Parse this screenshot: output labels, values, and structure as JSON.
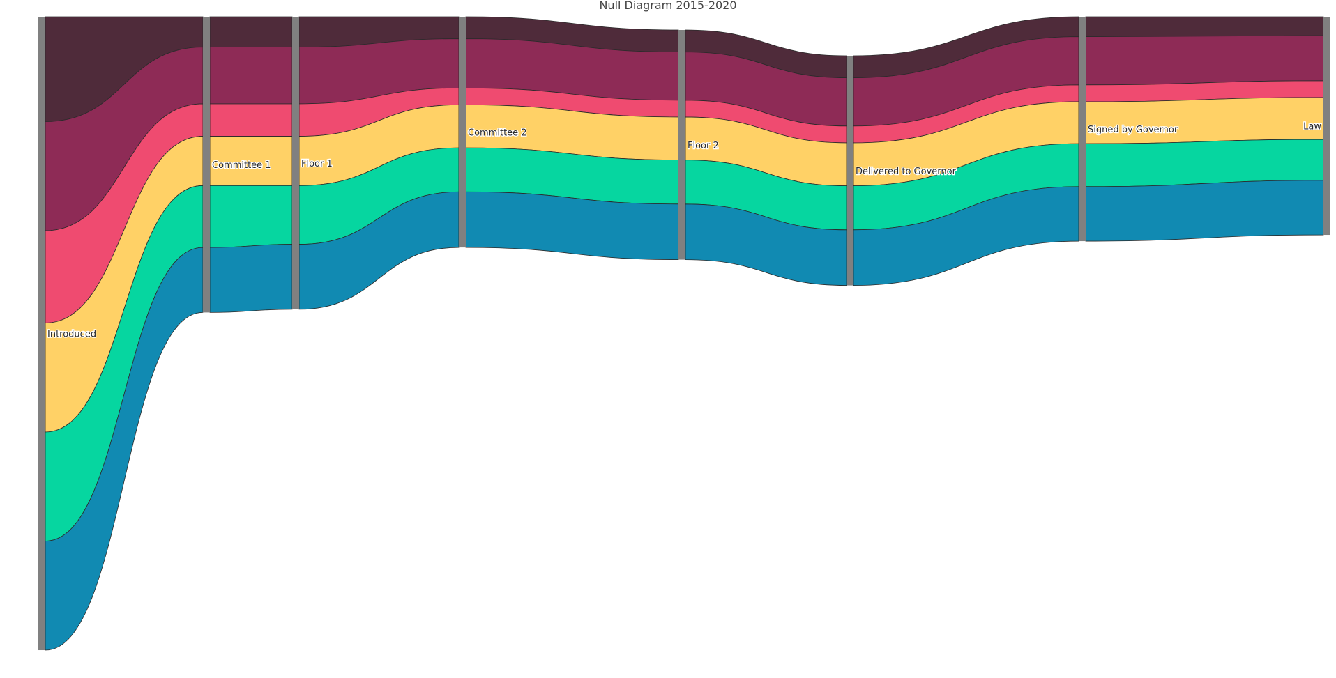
{
  "title": "Null Diagram 2015-2020",
  "colors": {
    "node": "#808080",
    "band_stroke": "#2b2b2b",
    "text": "#2a2a2a",
    "series": [
      "#4f2b3a",
      "#8e2b56",
      "#ef4b70",
      "#ffd166",
      "#06d6a0",
      "#118ab2"
    ]
  },
  "stages": [
    {
      "label": "Introduced",
      "values": [
        10,
        10.4,
        8.8,
        10.4,
        10.4,
        10.4
      ]
    },
    {
      "label": "Committee 1",
      "values": [
        2.9,
        5.4,
        3.1,
        4.7,
        5.9,
        6.2
      ]
    },
    {
      "label": "Floor 1",
      "values": [
        2.9,
        5.4,
        3.1,
        4.7,
        5.6,
        6.2
      ]
    },
    {
      "label": "Committee 2",
      "values": [
        2.1,
        4.7,
        1.6,
        4.1,
        4.2,
        5.3
      ]
    },
    {
      "label": "Floor 2",
      "values": [
        2.1,
        4.6,
        1.6,
        4.1,
        4.2,
        5.3
      ]
    },
    {
      "label": "Delivered to Governor",
      "values": [
        2.1,
        4.6,
        1.6,
        4.1,
        4.2,
        5.3
      ]
    },
    {
      "label": "Signed by Governor",
      "values": [
        1.9,
        4.6,
        1.6,
        4.0,
        4.1,
        5.2
      ]
    },
    {
      "label": "Law",
      "values": [
        1.8,
        4.3,
        1.6,
        4.0,
        3.9,
        5.2
      ]
    }
  ],
  "chart_data": {
    "type": "sankey",
    "title": "Null Diagram 2015-2020",
    "nodes": [
      "Introduced",
      "Committee 1",
      "Floor 1",
      "Committee 2",
      "Floor 2",
      "Delivered to Governor",
      "Signed by Governor",
      "Law"
    ],
    "series_count": 6
  }
}
